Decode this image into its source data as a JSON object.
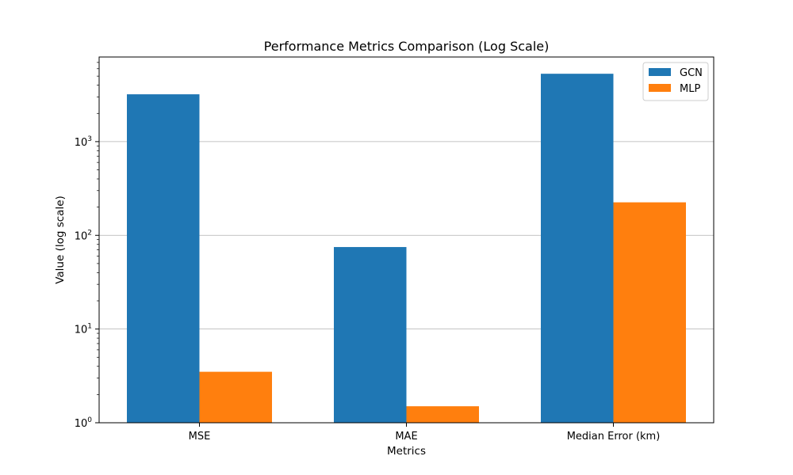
{
  "chart_data": {
    "type": "bar",
    "title": "Performance Metrics Comparison (Log Scale)",
    "xlabel": "Metrics",
    "ylabel": "Value (log scale)",
    "yscale": "log",
    "ylim": [
      1,
      8000
    ],
    "yticks": [
      {
        "value": 1,
        "base": "10",
        "exp": "0"
      },
      {
        "value": 10,
        "base": "10",
        "exp": "1"
      },
      {
        "value": 100,
        "base": "10",
        "exp": "2"
      },
      {
        "value": 1000,
        "base": "10",
        "exp": "3"
      }
    ],
    "grid": "y-major",
    "legend_position": "top-right",
    "categories": [
      "MSE",
      "MAE",
      "Median Error (km)"
    ],
    "series": [
      {
        "name": "GCN",
        "color": "#1f77b4",
        "values": [
          3200,
          75,
          5300
        ]
      },
      {
        "name": "MLP",
        "color": "#ff7f0e",
        "values": [
          3.5,
          1.5,
          225
        ]
      }
    ]
  }
}
